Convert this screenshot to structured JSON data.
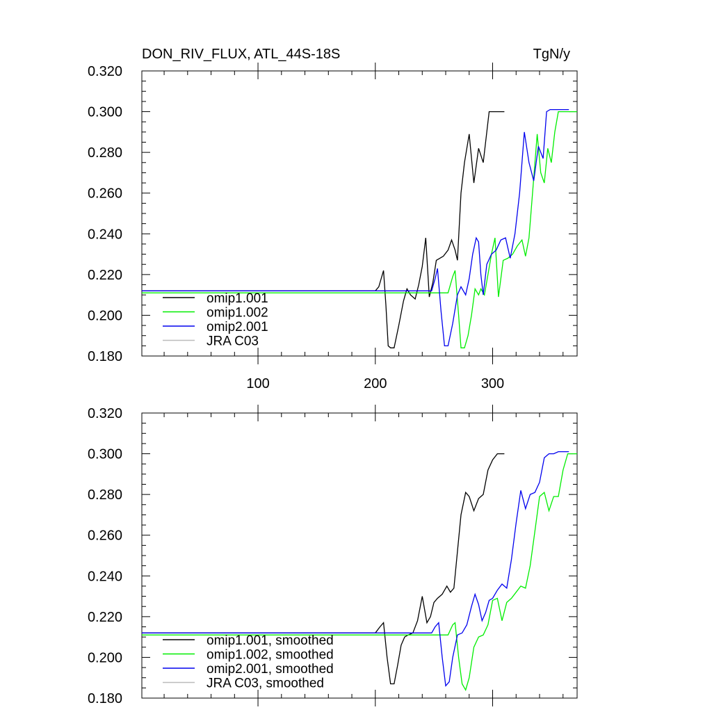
{
  "figure": {
    "title": "DON_RIV_FLUX, ATL_44S-18S",
    "units": "TgN/y"
  },
  "chart_data": [
    {
      "type": "line",
      "title": "DON_RIV_FLUX, ATL_44S-18S",
      "units": "TgN/y",
      "xlim": [
        1,
        372
      ],
      "ylim": [
        0.18,
        0.32
      ],
      "x_ticks": [
        100,
        200,
        300
      ],
      "y_ticks": [
        0.18,
        0.2,
        0.22,
        0.24,
        0.26,
        0.28,
        0.3,
        0.32
      ],
      "y_tick_labels": [
        "0.180",
        "0.200",
        "0.220",
        "0.240",
        "0.260",
        "0.280",
        "0.300",
        "0.320"
      ],
      "x_tick_labels": [
        "100",
        "200",
        "300"
      ],
      "legend_position": "bottom-left",
      "series": [
        {
          "name": "omip1.001",
          "color": "#000000",
          "x": [
            1,
            200,
            203,
            207,
            209,
            211,
            213,
            216,
            220,
            224,
            227,
            230,
            234,
            237,
            240,
            243,
            246,
            249,
            252,
            255,
            258,
            262,
            265,
            268,
            270,
            273,
            276,
            280,
            284,
            288,
            292,
            297,
            300,
            303,
            306,
            310
          ],
          "y": [
            0.212,
            0.212,
            0.214,
            0.222,
            0.205,
            0.185,
            0.184,
            0.184,
            0.195,
            0.207,
            0.213,
            0.21,
            0.208,
            0.215,
            0.224,
            0.238,
            0.209,
            0.216,
            0.227,
            0.228,
            0.229,
            0.232,
            0.237,
            0.232,
            0.227,
            0.26,
            0.275,
            0.289,
            0.265,
            0.282,
            0.275,
            0.3,
            0.3,
            0.3,
            0.3,
            0.3
          ]
        },
        {
          "name": "omip1.002",
          "color": "#00ee00",
          "x": [
            1,
            262,
            266,
            268,
            271,
            273,
            276,
            279,
            282,
            285,
            288,
            290,
            293,
            296,
            299,
            302,
            305,
            309,
            313,
            317,
            321,
            325,
            328,
            331,
            334,
            338,
            341,
            344,
            347,
            350,
            353,
            356,
            359,
            362,
            365,
            372
          ],
          "y": [
            0.211,
            0.211,
            0.219,
            0.222,
            0.2,
            0.184,
            0.184,
            0.19,
            0.2,
            0.213,
            0.21,
            0.213,
            0.21,
            0.22,
            0.23,
            0.238,
            0.209,
            0.227,
            0.228,
            0.23,
            0.234,
            0.237,
            0.229,
            0.238,
            0.26,
            0.289,
            0.27,
            0.265,
            0.282,
            0.275,
            0.29,
            0.3,
            0.3,
            0.3,
            0.3,
            0.3
          ]
        },
        {
          "name": "omip2.001",
          "color": "#0000ee",
          "x": [
            1,
            248,
            251,
            253,
            256,
            259,
            262,
            266,
            270,
            273,
            277,
            280,
            283,
            286,
            288,
            290,
            292,
            295,
            299,
            303,
            307,
            311,
            315,
            319,
            323,
            327,
            331,
            335,
            339,
            343,
            346,
            349,
            352,
            356,
            360,
            365
          ],
          "y": [
            0.212,
            0.212,
            0.218,
            0.223,
            0.202,
            0.185,
            0.185,
            0.196,
            0.21,
            0.214,
            0.21,
            0.218,
            0.23,
            0.238,
            0.236,
            0.22,
            0.21,
            0.225,
            0.23,
            0.232,
            0.237,
            0.238,
            0.228,
            0.24,
            0.26,
            0.29,
            0.275,
            0.266,
            0.283,
            0.277,
            0.3,
            0.301,
            0.301,
            0.301,
            0.301,
            0.301
          ]
        },
        {
          "name": "JRA C03",
          "color": "#bbbbbb",
          "x": [],
          "y": []
        }
      ]
    },
    {
      "type": "line",
      "xlim": [
        1,
        372
      ],
      "ylim": [
        0.18,
        0.32
      ],
      "x_ticks": [
        100,
        200,
        300
      ],
      "y_ticks": [
        0.18,
        0.2,
        0.22,
        0.24,
        0.26,
        0.28,
        0.3,
        0.32
      ],
      "y_tick_labels": [
        "0.180",
        "0.200",
        "0.220",
        "0.240",
        "0.260",
        "0.280",
        "0.300",
        "0.320"
      ],
      "x_tick_labels": [],
      "legend_position": "bottom-left",
      "series": [
        {
          "name": "omip1.001, smoothed",
          "color": "#000000",
          "x": [
            1,
            200,
            204,
            207,
            210,
            213,
            216,
            219,
            222,
            225,
            228,
            232,
            236,
            240,
            244,
            247,
            250,
            253,
            257,
            261,
            264,
            267,
            270,
            273,
            277,
            280,
            284,
            288,
            292,
            296,
            300,
            304,
            308,
            310
          ],
          "y": [
            0.212,
            0.212,
            0.215,
            0.217,
            0.2,
            0.187,
            0.187,
            0.196,
            0.206,
            0.21,
            0.211,
            0.212,
            0.218,
            0.23,
            0.217,
            0.22,
            0.227,
            0.229,
            0.231,
            0.235,
            0.232,
            0.234,
            0.252,
            0.27,
            0.281,
            0.279,
            0.272,
            0.278,
            0.28,
            0.292,
            0.297,
            0.3,
            0.3,
            0.3
          ]
        },
        {
          "name": "omip1.002, smoothed",
          "color": "#00ee00",
          "x": [
            1,
            262,
            266,
            268,
            271,
            274,
            277,
            280,
            284,
            288,
            292,
            296,
            300,
            304,
            308,
            312,
            316,
            320,
            324,
            328,
            332,
            336,
            340,
            344,
            348,
            352,
            356,
            360,
            364,
            368,
            372
          ],
          "y": [
            0.211,
            0.211,
            0.216,
            0.217,
            0.2,
            0.187,
            0.184,
            0.19,
            0.205,
            0.21,
            0.211,
            0.216,
            0.228,
            0.229,
            0.218,
            0.227,
            0.229,
            0.232,
            0.235,
            0.234,
            0.245,
            0.262,
            0.279,
            0.281,
            0.272,
            0.279,
            0.279,
            0.292,
            0.3,
            0.3,
            0.3
          ]
        },
        {
          "name": "omip2.001, smoothed",
          "color": "#0000ee",
          "x": [
            1,
            248,
            251,
            254,
            257,
            260,
            263,
            266,
            270,
            274,
            278,
            282,
            285,
            288,
            291,
            294,
            297,
            300,
            304,
            308,
            312,
            316,
            320,
            324,
            328,
            332,
            336,
            340,
            344,
            348,
            352,
            356,
            360,
            365
          ],
          "y": [
            0.212,
            0.212,
            0.215,
            0.217,
            0.2,
            0.186,
            0.188,
            0.2,
            0.211,
            0.212,
            0.216,
            0.225,
            0.231,
            0.226,
            0.218,
            0.222,
            0.228,
            0.229,
            0.233,
            0.236,
            0.234,
            0.248,
            0.266,
            0.282,
            0.273,
            0.28,
            0.281,
            0.286,
            0.298,
            0.3,
            0.3,
            0.301,
            0.301,
            0.301
          ]
        },
        {
          "name": "JRA C03, smoothed",
          "color": "#bbbbbb",
          "x": [],
          "y": []
        }
      ]
    }
  ]
}
